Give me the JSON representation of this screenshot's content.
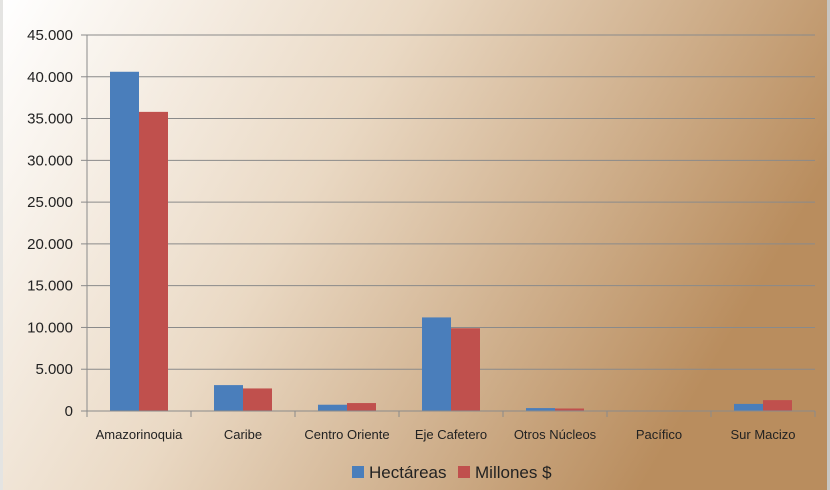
{
  "chart_data": {
    "type": "bar",
    "categories": [
      "Amazorinoquia",
      "Caribe",
      "Centro Oriente",
      "Eje Cafetero",
      "Otros Núcleos",
      "Pacífico",
      "Sur Macizo"
    ],
    "series": [
      {
        "name": "Hectáreas",
        "color": "#4a7ebb",
        "values": [
          40600,
          3100,
          750,
          11200,
          350,
          0,
          850
        ]
      },
      {
        "name": "Millones $",
        "color": "#c0504d",
        "values": [
          35800,
          2700,
          950,
          9900,
          300,
          0,
          1300
        ]
      }
    ],
    "ylim": [
      0,
      45000
    ],
    "yticks": [
      0,
      5000,
      10000,
      15000,
      20000,
      25000,
      30000,
      35000,
      40000,
      45000
    ],
    "ytick_labels": [
      "0",
      "5.000",
      "10.000",
      "15.000",
      "20.000",
      "25.000",
      "30.000",
      "35.000",
      "40.000",
      "45.000"
    ],
    "grid": true,
    "legend_position": "bottom",
    "title": "",
    "xlabel": "",
    "ylabel": ""
  }
}
